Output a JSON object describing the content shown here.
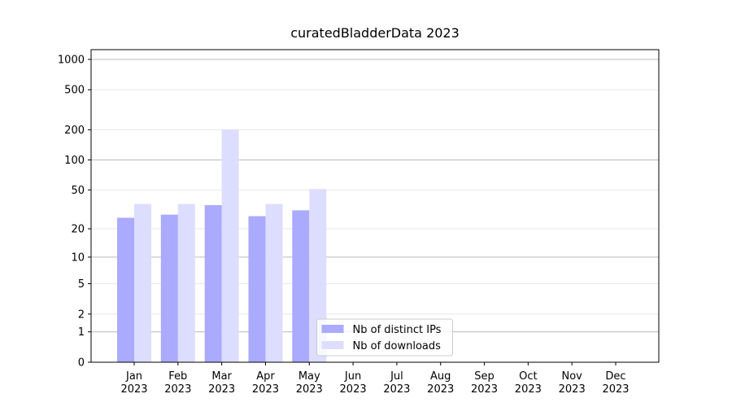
{
  "chart_data": {
    "type": "bar",
    "title": "curatedBladderData 2023",
    "categories": [
      [
        "Jan",
        "2023"
      ],
      [
        "Feb",
        "2023"
      ],
      [
        "Mar",
        "2023"
      ],
      [
        "Apr",
        "2023"
      ],
      [
        "May",
        "2023"
      ],
      [
        "Jun",
        "2023"
      ],
      [
        "Jul",
        "2023"
      ],
      [
        "Aug",
        "2023"
      ],
      [
        "Sep",
        "2023"
      ],
      [
        "Oct",
        "2023"
      ],
      [
        "Nov",
        "2023"
      ],
      [
        "Dec",
        "2023"
      ]
    ],
    "series": [
      {
        "name": "Nb of distinct IPs",
        "color": "#aaaaff",
        "values": [
          26,
          28,
          35,
          27,
          31,
          null,
          null,
          null,
          null,
          null,
          null,
          null
        ]
      },
      {
        "name": "Nb of downloads",
        "color": "#ddddff",
        "values": [
          36,
          36,
          201,
          36,
          51,
          null,
          null,
          null,
          null,
          null,
          null,
          null
        ]
      }
    ],
    "yscale": "log1p",
    "ylim": [
      0,
      1249
    ],
    "yticks": [
      0,
      1,
      2,
      5,
      10,
      20,
      50,
      100,
      200,
      500,
      1000
    ],
    "grid": true,
    "legend": "lower center"
  }
}
